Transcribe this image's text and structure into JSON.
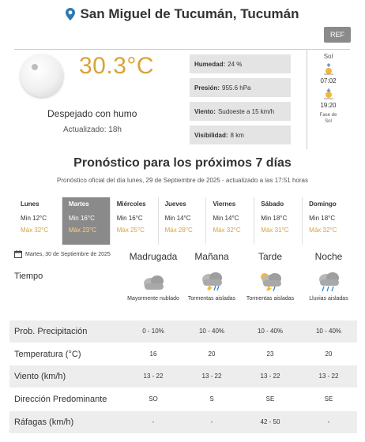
{
  "location": {
    "name": "San Miguel de Tucumán, Tucumán"
  },
  "ref_button": "REF",
  "current": {
    "temperature": "30.3°C",
    "condition": "Despejado con humo",
    "updated": "Actualizado: 18h",
    "stats": [
      {
        "label": "Humedad:",
        "value": "24 %"
      },
      {
        "label": "Presión:",
        "value": "955.6 hPa"
      },
      {
        "label": "Viento:",
        "value": "Sudoeste a 15 km/h"
      },
      {
        "label": "Visibilidad:",
        "value": "8 km"
      }
    ],
    "sun": {
      "title": "Sol",
      "sunrise": "07:02",
      "sunset": "19:20",
      "note_line1": "Fase de",
      "note_line2": "Sol"
    }
  },
  "forecast": {
    "title": "Pronóstico para los próximos 7 días",
    "subtitle": "Pronóstico oficial del día lunes, 29 de Septiembre de 2025 - actualizado a las 17:51 horas",
    "days": [
      {
        "name": "Lunes",
        "min": "Min 12°C",
        "max": "Máx 32°C"
      },
      {
        "name": "Martes",
        "min": "Min 16°C",
        "max": "Máx 23°C"
      },
      {
        "name": "Miércoles",
        "min": "Min 16°C",
        "max": "Máx 25°C"
      },
      {
        "name": "Jueves",
        "min": "Min 14°C",
        "max": "Máx 28°C"
      },
      {
        "name": "Viernes",
        "min": "Min 14°C",
        "max": "Máx 32°C"
      },
      {
        "name": "Sábado",
        "min": "Min 18°C",
        "max": "Máx 31°C"
      },
      {
        "name": "Domingo",
        "min": "Min 18°C",
        "max": "Máx 32°C"
      }
    ],
    "active_day": "Martes"
  },
  "detail": {
    "date": "Martes, 30 de Septiembre de 2025",
    "periods": [
      "Madrugada",
      "Mañana",
      "Tarde",
      "Noche"
    ],
    "rows": {
      "tiempo": {
        "label": "Tiempo",
        "values": [
          "Mayormente nublado",
          "Tormentas aisladas",
          "Tormentas aisladas",
          "Lluvias aisladas"
        ]
      },
      "precip": {
        "label": "Prob. Precipitación",
        "values": [
          "0 - 10%",
          "10 - 40%",
          "10 - 40%",
          "10 - 40%"
        ]
      },
      "temp": {
        "label": "Temperatura (°C)",
        "values": [
          "16",
          "20",
          "23",
          "20"
        ]
      },
      "wind": {
        "label": "Viento (km/h)",
        "values": [
          "13 - 22",
          "13 - 22",
          "13 - 22",
          "13 - 22"
        ]
      },
      "direction": {
        "label": "Dirección Predominante",
        "values": [
          "SO",
          "S",
          "SE",
          "SE"
        ]
      },
      "gusts": {
        "label": "Ráfagas (km/h)",
        "values": [
          "-",
          "-",
          "42 - 50",
          "-"
        ]
      }
    }
  },
  "colors": {
    "accent": "#d8a33a",
    "active_day_bg": "#8a8a8a",
    "band": "#ededed"
  },
  "icons": [
    "location-pin-icon",
    "moon-icon",
    "sunrise-icon",
    "sunset-icon",
    "calendar-icon",
    "cloud-icon",
    "storm-icon",
    "rain-icon"
  ]
}
